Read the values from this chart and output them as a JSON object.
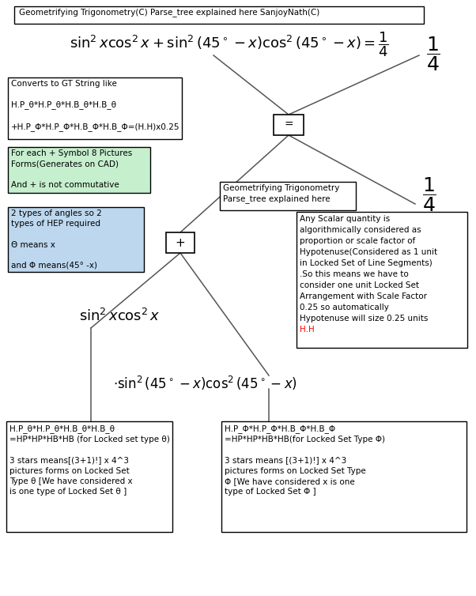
{
  "title_box": "Geometrifying Trigonometry(C) Parse_tree explained here SanjoyNath(C)",
  "gt_string_box": "Converts to GT String like\n\nH.P_θ*H.P_θ*H.B_θ*H.B_θ\n\n+H.P_Φ*H.P_Φ*H.B_Φ*H.B_Φ=(H.H)x0.25",
  "green_box": "For each + Symbol 8 Pictures\nForms(Generates on CAD)\n\nAnd + is not commutative",
  "blue_box": "2 types of angles so 2\ntypes of HEP required\n\nΘ means x\n\nand Φ means(45° -x)",
  "parse_tree_box": "Geometrifying Trigonometry\nParse_tree explained here",
  "scalar_box": "Any Scalar quantity is\nalgorithmically considered as\nproportion or scale factor of\nHypotenuse(Considered as 1 unit\nin Locked Set of Line Segments)\n.So this means we have to\nconsider one unit Locked Set\nArrangement with Scale Factor\n0.25 so automatically\nHypotenuse will size 0.25 units\nH.H",
  "left_bottom_box": "H.P_θ*H.P_θ*H.B_θ*H.B_θ\n=HP*HP*HB*HB (for Locked set type θ)\n\n3 stars means[(3+1)!] x 4^3\npictures forms on Locked Set\nType θ [We have considered x\nis one type of Locked Set θ ]",
  "right_bottom_box": "H.P_Φ*H.P_Φ*H.B_Φ*H.B_Φ\n=HP*HP*HB*HB(for Locked Set Type Φ)\n\n3 stars means [(3+1)!] x 4^3\npictures forms on Locked Set Type\nΦ [We have considered x is one\ntype of Locked Set Φ ]",
  "bg_color": "#ffffff",
  "green_fill": "#c6efce",
  "blue_fill": "#bdd7ee",
  "scalar_text_color": "#ff0000",
  "fig_w": 6.02,
  "fig_h": 7.54,
  "dpi": 100
}
